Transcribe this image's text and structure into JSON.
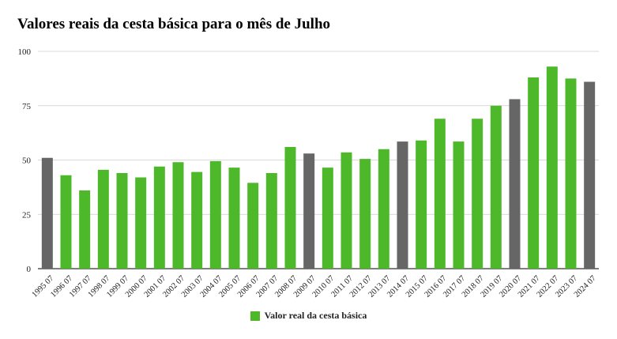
{
  "chart_data": {
    "type": "bar",
    "title": "Valores reais da cesta básica para o mês de Julho",
    "xlabel": "",
    "ylabel": "",
    "ylim": [
      0,
      100
    ],
    "yticks": [
      0,
      25,
      50,
      75,
      100
    ],
    "grid": true,
    "legend_position": "bottom",
    "categories": [
      "1995 07",
      "1996 07",
      "1997 07",
      "1998 07",
      "1999 07",
      "2000 07",
      "2001 07",
      "2002 07",
      "2003 07",
      "2004 07",
      "2005 07",
      "2006 07",
      "2007 07",
      "2008 07",
      "2009 07",
      "2010 07",
      "2011 07",
      "2012 07",
      "2013 07",
      "2014 07",
      "2015 07",
      "2016 07",
      "2017 07",
      "2018 07",
      "2019 07",
      "2020 07",
      "2021 07",
      "2022 07",
      "2023 07",
      "2024 07"
    ],
    "series": [
      {
        "name": "Valor real da cesta básica",
        "values": [
          51,
          43,
          36,
          45.5,
          44,
          42,
          47,
          49,
          44.5,
          49.5,
          46.5,
          39.5,
          44,
          56,
          53,
          46.5,
          53.5,
          50.5,
          55,
          58.5,
          59,
          69,
          58.5,
          69,
          75,
          78,
          88,
          93,
          87.5,
          86
        ]
      }
    ],
    "highlight_categories": [
      "1995 07",
      "2009 07",
      "2014 07",
      "2020 07",
      "2024 07"
    ],
    "colors": {
      "series": "#4CB82A",
      "highlight": "#666666",
      "grid": "#cccccc",
      "axis": "#333333",
      "text": "#222222"
    }
  }
}
